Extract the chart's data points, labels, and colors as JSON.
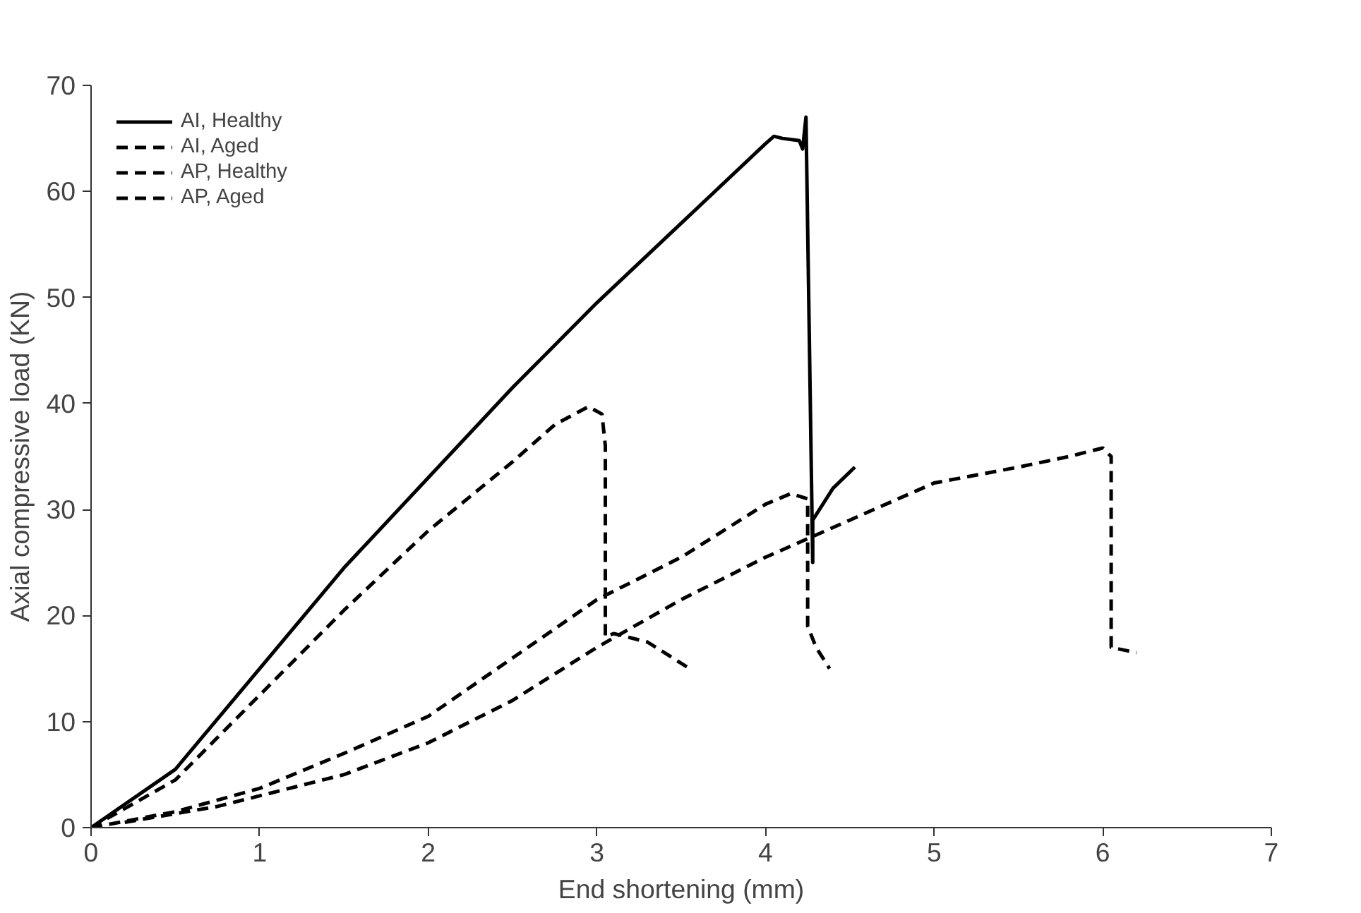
{
  "chart_data": {
    "type": "line",
    "xlabel": "End shortening (mm)",
    "ylabel": "Axial compressive load (KN)",
    "xlim": [
      0,
      7
    ],
    "ylim": [
      0,
      70
    ],
    "xticks": [
      0,
      1,
      2,
      3,
      4,
      5,
      6,
      7
    ],
    "yticks": [
      0,
      10,
      20,
      30,
      40,
      50,
      60,
      70
    ],
    "grid": false,
    "legend": "top left",
    "marker": "none",
    "series": [
      {
        "name": "AI, Healthy",
        "color": "#000000",
        "line_style": "solid",
        "x": [
          0,
          0.5,
          1,
          1.5,
          2,
          2.5,
          3,
          3.5,
          4,
          4.05,
          4.1,
          4.2,
          4.22,
          4.24,
          4.28,
          4.28,
          4.4,
          4.53
        ],
        "values": [
          0,
          5.5,
          15,
          24.5,
          33,
          41.5,
          49.5,
          57,
          64.5,
          65.2,
          65,
          64.8,
          64,
          67,
          25,
          29,
          32,
          34
        ]
      },
      {
        "name": "AI, Aged",
        "color": "#000000",
        "line_style": "dashed",
        "x": [
          0,
          0.5,
          1,
          1.5,
          2,
          2.5,
          2.75,
          2.95,
          3.03,
          3.05,
          3.05,
          3.1,
          3.3,
          3.55
        ],
        "values": [
          0,
          4.5,
          12.5,
          20.5,
          28,
          34.5,
          38,
          39.7,
          39,
          36,
          18,
          18.3,
          17.5,
          15
        ]
      },
      {
        "name": "AP, Healthy",
        "color": "#000000",
        "line_style": "dashed",
        "x": [
          0,
          0.5,
          1,
          1.5,
          2,
          2.5,
          3,
          3.5,
          4,
          4.15,
          4.25,
          4.25,
          4.3,
          4.38
        ],
        "values": [
          0,
          1.5,
          3.7,
          7,
          10.5,
          16,
          21.5,
          25.5,
          30.5,
          31.5,
          31,
          19,
          17,
          15
        ]
      },
      {
        "name": "AP, Aged",
        "color": "#000000",
        "line_style": "dashed",
        "x": [
          0.2,
          0.75,
          1,
          1.5,
          2,
          2.5,
          3,
          3.5,
          4,
          4.5,
          5,
          5.5,
          5.8,
          6,
          6.05,
          6.05,
          6.2
        ],
        "values": [
          0.5,
          2,
          3,
          5,
          8,
          12,
          17,
          21.5,
          25.5,
          29,
          32.5,
          34,
          35,
          35.8,
          35,
          17,
          16.5
        ]
      }
    ]
  }
}
